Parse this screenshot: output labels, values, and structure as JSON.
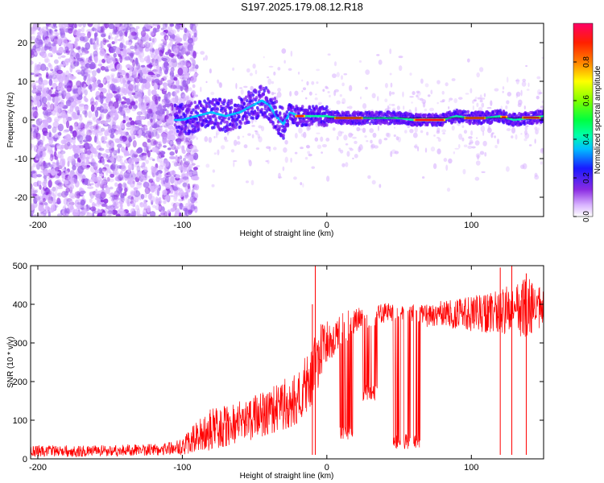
{
  "title": "S197.2025.179.08.12.R18",
  "chart_data": [
    {
      "type": "heatmap",
      "xlabel": "Height of straight line (km)",
      "ylabel": "Frequency (Hz)",
      "xlim": [
        -205,
        150
      ],
      "ylim": [
        -25,
        25
      ],
      "xticks": [
        -200,
        -100,
        0,
        100
      ],
      "yticks": [
        -20,
        -10,
        0,
        10,
        20
      ],
      "colorbar": {
        "label": "Normalized spectral amplitude",
        "range": [
          0,
          1
        ],
        "ticks": [
          0.0,
          0.2,
          0.4,
          0.6,
          0.8
        ],
        "colormap": [
          "#ffffff",
          "#d9b3ff",
          "#8a2be2",
          "#1a1aff",
          "#00bfff",
          "#00ff80",
          "#80ff00",
          "#ffff00",
          "#ff8000",
          "#ff0000",
          "#ff0066"
        ]
      },
      "ridge": {
        "x": [
          -100,
          -90,
          -80,
          -70,
          -60,
          -50,
          -45,
          -40,
          -35,
          -30,
          -25,
          -20,
          -10,
          0,
          10,
          20,
          30,
          40,
          50,
          60,
          70,
          80,
          90,
          100,
          110,
          120,
          130,
          140,
          150
        ],
        "y": [
          0,
          1,
          2,
          1,
          2,
          4,
          5,
          4,
          1,
          -1,
          2,
          1,
          1,
          1,
          0.5,
          0.5,
          0.5,
          0.5,
          0.5,
          0,
          0,
          0,
          1,
          0.5,
          0.5,
          1,
          0,
          0.5,
          1
        ]
      }
    },
    {
      "type": "line",
      "xlabel": "Height of straight line (km)",
      "ylabel": "SNR (10 * v/v)",
      "xlim": [
        -205,
        150
      ],
      "ylim": [
        0,
        500
      ],
      "xticks": [
        -200,
        -100,
        0,
        100
      ],
      "yticks": [
        0,
        100,
        200,
        300,
        400,
        500
      ],
      "color": "#ff0000",
      "envelope": {
        "x": [
          -205,
          -160,
          -120,
          -100,
          -90,
          -80,
          -60,
          -40,
          -20,
          -10,
          -5,
          0,
          10,
          20,
          30,
          40,
          50,
          60,
          70,
          80,
          100,
          120,
          140,
          150
        ],
        "low": [
          5,
          5,
          8,
          10,
          15,
          20,
          40,
          60,
          90,
          120,
          200,
          230,
          280,
          330,
          340,
          350,
          360,
          355,
          340,
          340,
          330,
          320,
          310,
          320
        ],
        "high": [
          35,
          35,
          40,
          50,
          100,
          130,
          150,
          180,
          230,
          300,
          350,
          360,
          380,
          390,
          400,
          405,
          400,
          400,
          400,
          410,
          420,
          440,
          470,
          450
        ]
      },
      "dips": [
        {
          "x": [
            9,
            18
          ],
          "min": 50
        },
        {
          "x": [
            25,
            35
          ],
          "min": 150
        },
        {
          "x": [
            46,
            51
          ],
          "min": 25
        },
        {
          "x": [
            53,
            58
          ],
          "min": 25
        },
        {
          "x": [
            60,
            65
          ],
          "min": 25
        }
      ],
      "spikes": [
        {
          "x": -8,
          "y": 500
        },
        {
          "x": -10,
          "y": 400
        },
        {
          "x": 120,
          "y": 495
        },
        {
          "x": 128,
          "y": 500
        },
        {
          "x": 138,
          "y": 480
        }
      ]
    }
  ]
}
